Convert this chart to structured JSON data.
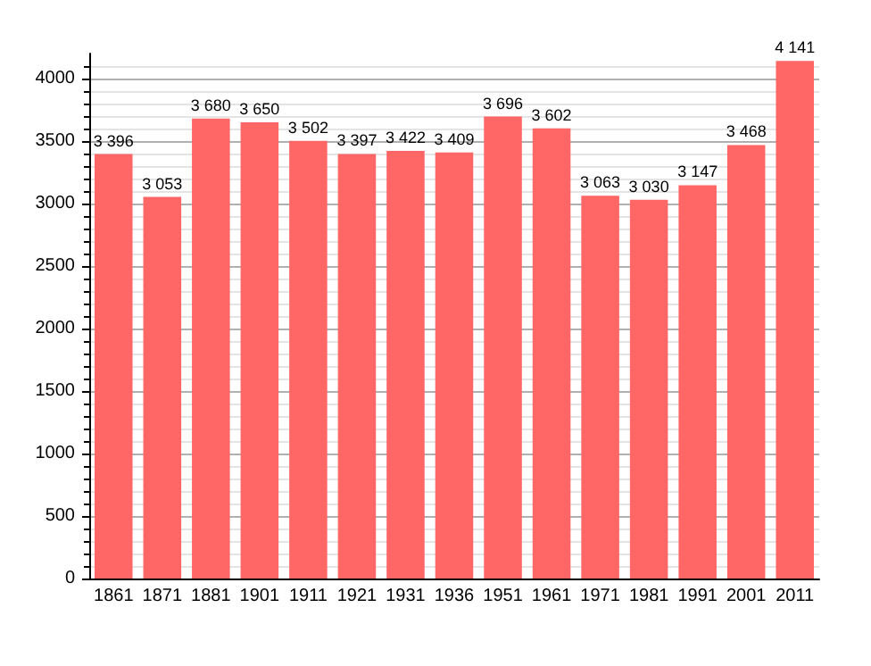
{
  "chart_data": {
    "type": "bar",
    "categories": [
      "1861",
      "1871",
      "1881",
      "1901",
      "1911",
      "1921",
      "1931",
      "1936",
      "1951",
      "1961",
      "1971",
      "1981",
      "1991",
      "2001",
      "2011"
    ],
    "values": [
      3396,
      3053,
      3680,
      3650,
      3502,
      3397,
      3422,
      3409,
      3696,
      3602,
      3063,
      3030,
      3147,
      3468,
      4141
    ],
    "value_labels": [
      "3 396",
      "3 053",
      "3 680",
      "3 650",
      "3 502",
      "3 397",
      "3 422",
      "3 409",
      "3 696",
      "3 602",
      "3 063",
      "3 030",
      "3 147",
      "3 468",
      "4 141"
    ],
    "color": "#ff6666",
    "ylim": [
      0,
      4200
    ],
    "yticks": [
      0,
      500,
      1000,
      1500,
      2000,
      2500,
      3000,
      3500,
      4000
    ],
    "grid": "y"
  }
}
